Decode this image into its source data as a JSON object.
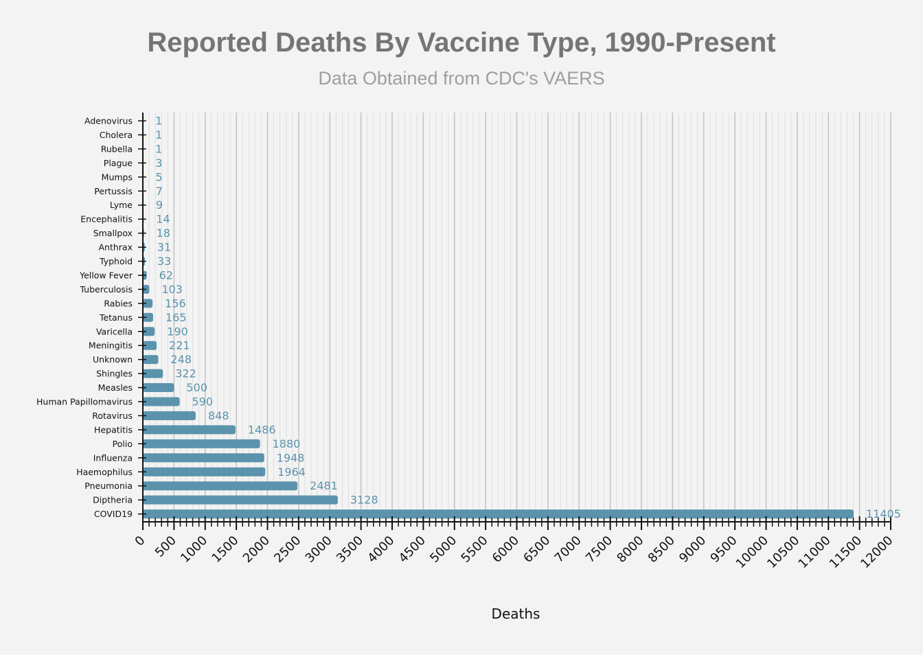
{
  "chart_data": {
    "type": "bar",
    "orientation": "horizontal",
    "title": "Reported Deaths By Vaccine Type, 1990-Present",
    "subtitle": "Data Obtained from CDC's VAERS",
    "xlabel": "Deaths",
    "ylabel": "",
    "xlim": [
      0,
      12000
    ],
    "major_tick_step": 500,
    "minor_tick_step": 100,
    "grid": true,
    "bar_color": "#5b93ad",
    "label_color": "#5b93ad",
    "categories": [
      "Adenovirus",
      "Cholera",
      "Rubella",
      "Plague",
      "Mumps",
      "Pertussis",
      "Lyme",
      "Encephalitis",
      "Smallpox",
      "Anthrax",
      "Typhoid",
      "Yellow Fever",
      "Tuberculosis",
      "Rabies",
      "Tetanus",
      "Varicella",
      "Meningitis",
      "Unknown",
      "Shingles",
      "Measles",
      "Human Papillomavirus",
      "Rotavirus",
      "Hepatitis",
      "Polio",
      "Influenza",
      "Haemophilus",
      "Pneumonia",
      "Diptheria",
      "COVID19"
    ],
    "values": [
      1,
      1,
      1,
      3,
      5,
      7,
      9,
      14,
      18,
      31,
      33,
      62,
      103,
      156,
      165,
      190,
      221,
      248,
      322,
      500,
      590,
      848,
      1486,
      1880,
      1948,
      1964,
      2481,
      3128,
      11405
    ],
    "tick_labels": [
      "0",
      "500",
      "1000",
      "1500",
      "2000",
      "2500",
      "3000",
      "3500",
      "4000",
      "4500",
      "5000",
      "5500",
      "6000",
      "6500",
      "7000",
      "7500",
      "8000",
      "8500",
      "9000",
      "9500",
      "10000",
      "10500",
      "11000",
      "11500",
      "12000"
    ]
  }
}
